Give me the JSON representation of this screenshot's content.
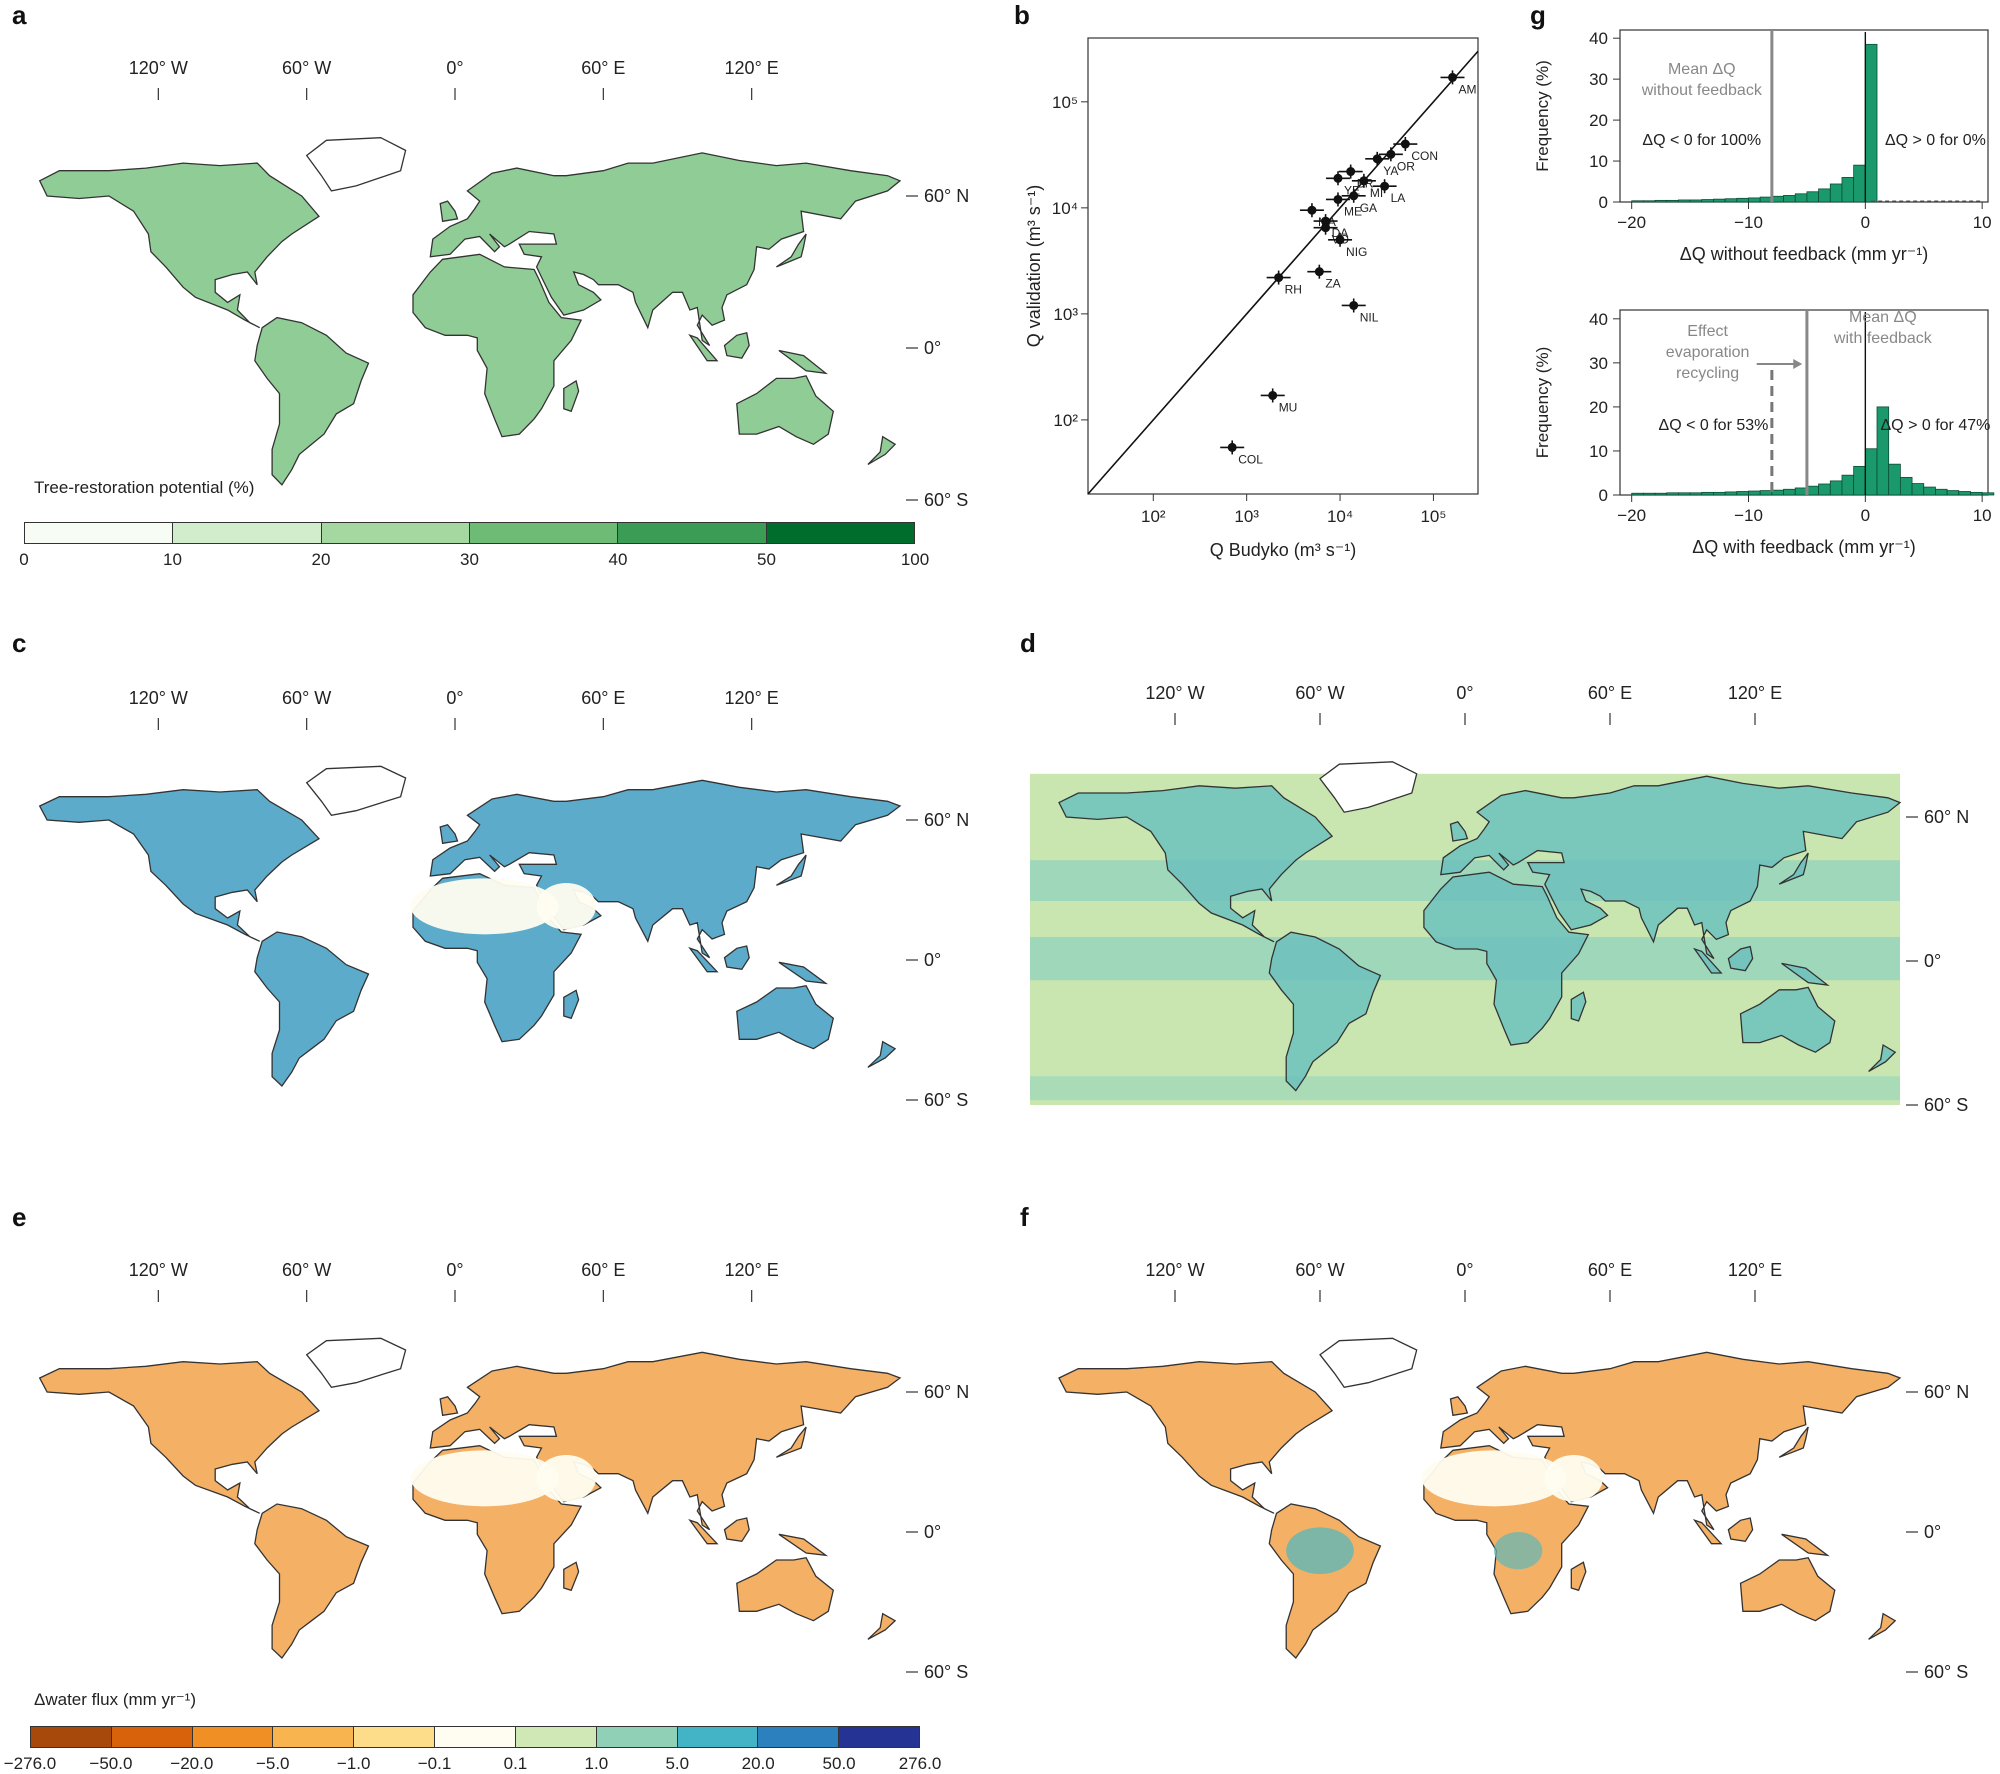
{
  "panels": {
    "a": "a",
    "b": "b",
    "c": "c",
    "d": "d",
    "e": "e",
    "f": "f",
    "g": "g"
  },
  "map_axis": {
    "lon_labels": [
      "120° W",
      "60° W",
      "0°",
      "60° E",
      "120° E"
    ],
    "lat_labels": [
      "60° N",
      "0°",
      "60° S"
    ]
  },
  "colorbar_a": {
    "title": "Tree-restoration potential (%)",
    "ticks": [
      "0",
      "10",
      "20",
      "30",
      "40",
      "50",
      "100"
    ],
    "colors": [
      "#f7fcf5",
      "#d2edcc",
      "#a5d8a0",
      "#6dbb74",
      "#3b9d55",
      "#006d2c"
    ]
  },
  "colorbar_e": {
    "title": "Δwater flux (mm yr⁻¹)",
    "ticks": [
      "−276.0",
      "−50.0",
      "−20.0",
      "−5.0",
      "−1.0",
      "−0.1",
      "0.1",
      "1.0",
      "5.0",
      "20.0",
      "50.0",
      "276.0"
    ],
    "colors": [
      "#a6490a",
      "#d8620c",
      "#f08f24",
      "#f8b44e",
      "#fddc8a",
      "#fffdf2",
      "#cfe8b5",
      "#8fd0b6",
      "#43b3c6",
      "#2b80bd",
      "#253494"
    ]
  },
  "map_colors": {
    "a": "#7cc484",
    "c": "#3f9cc2",
    "d": "#6cc1bd",
    "e": "#f2a24a",
    "f": "#f2a24a",
    "ocean_d": "#c9e6b0",
    "coast": "#333333"
  },
  "chart_data": [
    {
      "type": "scatter",
      "panel": "b",
      "xlabel": "Q Budyko (m³ s⁻¹)",
      "ylabel": "Q validation (m³ s⁻¹)",
      "xscale": "log",
      "yscale": "log",
      "xlim": [
        20,
        300000
      ],
      "ylim": [
        20,
        400000
      ],
      "xticks": [
        "10²",
        "10³",
        "10⁴",
        "10⁵"
      ],
      "yticks": [
        "10²",
        "10³",
        "10⁴",
        "10⁵"
      ],
      "line": "1:1",
      "points": [
        {
          "label": "AM",
          "x": 160000,
          "y": 170000
        },
        {
          "label": "CON",
          "x": 50000,
          "y": 40000
        },
        {
          "label": "OR",
          "x": 35000,
          "y": 32000
        },
        {
          "label": "YA",
          "x": 25000,
          "y": 29000
        },
        {
          "label": "BR",
          "x": 13000,
          "y": 22000
        },
        {
          "label": "YE",
          "x": 9500,
          "y": 19000
        },
        {
          "label": "MI",
          "x": 18000,
          "y": 18000
        },
        {
          "label": "LA",
          "x": 30000,
          "y": 16000
        },
        {
          "label": "GA",
          "x": 14000,
          "y": 13000
        },
        {
          "label": "ME",
          "x": 9500,
          "y": 12000
        },
        {
          "label": "MA",
          "x": 5000,
          "y": 9500
        },
        {
          "label": "DA",
          "x": 7000,
          "y": 7500
        },
        {
          "label": "VO",
          "x": 7000,
          "y": 6500
        },
        {
          "label": "NIG",
          "x": 10000,
          "y": 5000
        },
        {
          "label": "RH",
          "x": 2200,
          "y": 2200
        },
        {
          "label": "ZA",
          "x": 6000,
          "y": 2500
        },
        {
          "label": "NIL",
          "x": 14000,
          "y": 1200
        },
        {
          "label": "MU",
          "x": 1900,
          "y": 170
        },
        {
          "label": "COL",
          "x": 700,
          "y": 55
        }
      ]
    },
    {
      "type": "bar",
      "panel": "g-top",
      "xlabel": "ΔQ without feedback (mm yr⁻¹)",
      "ylabel": "Frequency (%)",
      "xlim": [
        -21,
        10.5
      ],
      "ylim": [
        0,
        42
      ],
      "xticks": [
        -20,
        -10,
        0,
        10
      ],
      "yticks": [
        0,
        10,
        20,
        30,
        40
      ],
      "bin_edges": [
        -20,
        -19,
        -18,
        -17,
        -16,
        -15,
        -14,
        -13,
        -12,
        -11,
        -10,
        -9,
        -8,
        -7,
        -6,
        -5,
        -4,
        -3,
        -2,
        -1,
        0
      ],
      "values": [
        0.3,
        0.3,
        0.4,
        0.4,
        0.5,
        0.5,
        0.6,
        0.7,
        0.8,
        0.9,
        1.0,
        1.2,
        1.4,
        1.6,
        2.0,
        2.5,
        3.2,
        4.4,
        6.0,
        9.0,
        38.5
      ],
      "mean_line": -8,
      "annotations": [
        "Mean ΔQ",
        "without feedback",
        "ΔQ < 0 for 100%",
        "ΔQ > 0 for 0%"
      ]
    },
    {
      "type": "bar",
      "panel": "g-bottom",
      "xlabel": "ΔQ with feedback (mm yr⁻¹)",
      "ylabel": "Frequency (%)",
      "xlim": [
        -21,
        10.5
      ],
      "ylim": [
        0,
        42
      ],
      "xticks": [
        -20,
        -10,
        0,
        10
      ],
      "yticks": [
        0,
        10,
        20,
        30,
        40
      ],
      "bin_edges": [
        -20,
        -19,
        -18,
        -17,
        -16,
        -15,
        -14,
        -13,
        -12,
        -11,
        -10,
        -9,
        -8,
        -7,
        -6,
        -5,
        -4,
        -3,
        -2,
        -1,
        0,
        1,
        2,
        3,
        4,
        5,
        6,
        7,
        8,
        9,
        10
      ],
      "values": [
        0.4,
        0.4,
        0.4,
        0.5,
        0.5,
        0.5,
        0.6,
        0.6,
        0.7,
        0.8,
        0.9,
        1.0,
        1.1,
        1.3,
        1.6,
        2.0,
        2.5,
        3.2,
        4.5,
        6.5,
        10.5,
        20.0,
        7.0,
        4.0,
        2.6,
        1.8,
        1.3,
        1.0,
        0.8,
        0.6,
        0.5
      ],
      "mean_line_without": -8,
      "mean_line_with": -5,
      "annotations": [
        "Effect",
        "evaporation",
        "recycling",
        "Mean ΔQ",
        "with feedback",
        "ΔQ < 0 for 53%",
        "ΔQ > 0 for 47%"
      ]
    }
  ]
}
